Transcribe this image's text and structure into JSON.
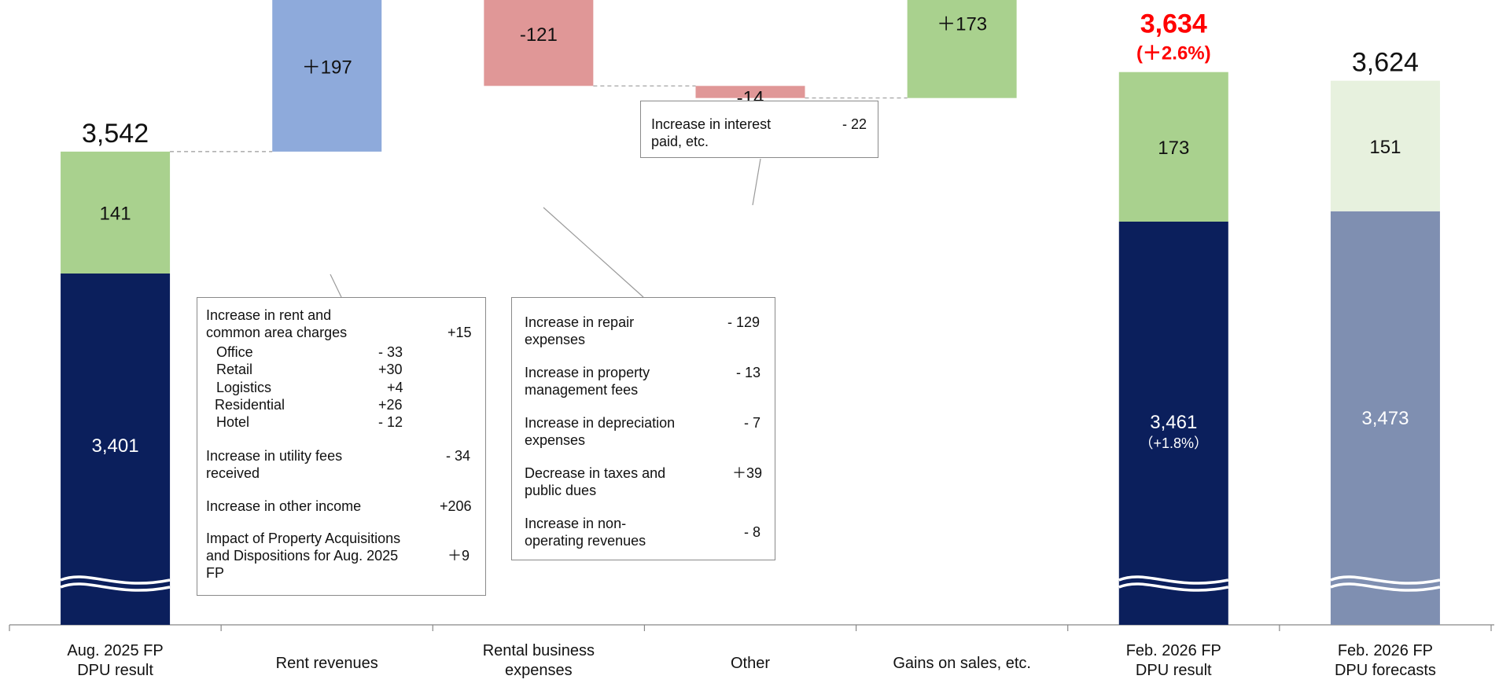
{
  "chart_data": {
    "type": "waterfall",
    "unit": "",
    "categories": [
      "Aug. 2025 FP\nDPU result",
      "Rent revenues",
      "Rental business\nexpenses",
      "Other",
      "Gains on sales, etc.",
      "Feb. 2026 FP\nDPU result",
      "Feb. 2026 FP\nDPU forecasts"
    ],
    "bars": [
      {
        "category": "Aug. 2025 FP DPU result",
        "kind": "total",
        "segments": [
          {
            "value": 3401,
            "label": "3,401",
            "color": "#0b1f5c"
          },
          {
            "value": 141,
            "label": "141",
            "color": "#a9d18e"
          }
        ],
        "total_label": "3,542"
      },
      {
        "category": "Rent revenues",
        "kind": "delta",
        "value": 197,
        "label": "＋197",
        "color": "#8eaadb"
      },
      {
        "category": "Rental business expenses",
        "kind": "delta",
        "value": -121,
        "label": "-121",
        "color": "#e09797"
      },
      {
        "category": "Other",
        "kind": "delta",
        "value": -14,
        "label": "-14",
        "color": "#e09797"
      },
      {
        "category": "Gains on sales, etc.",
        "kind": "delta",
        "value": 173,
        "label": "＋173",
        "color": "#a9d18e"
      },
      {
        "category": "Feb. 2026 FP DPU result",
        "kind": "total",
        "segments": [
          {
            "value": 3461,
            "label": "3,461",
            "sublabel": "（+1.8%）",
            "color": "#0b1f5c"
          },
          {
            "value": 173,
            "label": "173",
            "color": "#a9d18e"
          }
        ],
        "total_label": "3,634",
        "total_sublabel": "(＋2.6%)",
        "total_color": "#ff0000"
      },
      {
        "category": "Feb. 2026 FP DPU forecasts",
        "kind": "total",
        "segments": [
          {
            "value": 3473,
            "label": "3,473",
            "color": "#7f8fb1"
          },
          {
            "value": 151,
            "label": "151",
            "color": "#e7f1de"
          }
        ],
        "total_label": "3,624"
      }
    ],
    "axis_break": true,
    "grid": false,
    "legend": "none"
  },
  "callouts": {
    "rent": {
      "items": [
        {
          "label": "Increase in rent and common area charges",
          "value": "+15"
        },
        {
          "label": "Increase in utility fees received",
          "value": "- 34"
        },
        {
          "label": "Increase in other income",
          "value": "+206"
        },
        {
          "label": "Impact of Property Acquisitions and Dispositions for Aug. 2025 FP",
          "value": "＋9"
        }
      ],
      "breakdown": [
        {
          "label": "Office",
          "value": "- 33"
        },
        {
          "label": "Retail",
          "value": "+30"
        },
        {
          "label": "Logistics",
          "value": "+4"
        },
        {
          "label": "Residential",
          "value": "+26"
        },
        {
          "label": "Hotel",
          "value": "- 12"
        }
      ]
    },
    "expenses": {
      "items": [
        {
          "label": "Increase in repair expenses",
          "value": "- 129"
        },
        {
          "label": "Increase in property management fees",
          "value": "- 13"
        },
        {
          "label": "Increase in depreciation expenses",
          "value": "- 7"
        },
        {
          "label": "Decrease in taxes and public dues",
          "value": "＋39"
        },
        {
          "label": "Increase in non-operating revenues",
          "value": "- 8"
        }
      ]
    },
    "other": {
      "items": [
        {
          "label": "Increase in interest paid, etc.",
          "value": "- 22"
        }
      ]
    }
  }
}
